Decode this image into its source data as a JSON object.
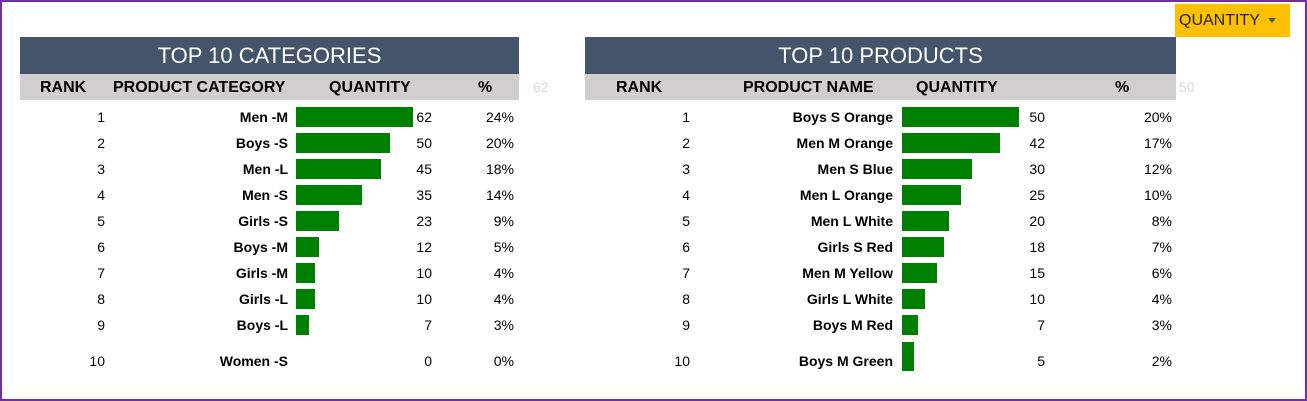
{
  "dropdown": {
    "label": "QUANTITY",
    "icon": "caret-down-icon"
  },
  "colors": {
    "header_bg": "#44546a",
    "subheader_bg": "#d0cece",
    "bar": "#008000",
    "accent": "#ffc000",
    "border": "#7030a0"
  },
  "categories": {
    "title": "TOP 10 CATEGORIES",
    "headers": {
      "rank": "RANK",
      "name": "PRODUCT CATEGORY",
      "quantity": "QUANTITY",
      "pct": "%"
    },
    "max_label": "62",
    "max": 62,
    "rows": [
      {
        "rank": "1",
        "name": "Men -M",
        "quantity": 62,
        "pct": "24%"
      },
      {
        "rank": "2",
        "name": "Boys -S",
        "quantity": 50,
        "pct": "20%"
      },
      {
        "rank": "3",
        "name": "Men -L",
        "quantity": 45,
        "pct": "18%"
      },
      {
        "rank": "4",
        "name": "Men -S",
        "quantity": 35,
        "pct": "14%"
      },
      {
        "rank": "5",
        "name": "Girls -S",
        "quantity": 23,
        "pct": "9%"
      },
      {
        "rank": "6",
        "name": "Boys -M",
        "quantity": 12,
        "pct": "5%"
      },
      {
        "rank": "7",
        "name": "Girls -M",
        "quantity": 10,
        "pct": "4%"
      },
      {
        "rank": "8",
        "name": "Girls -L",
        "quantity": 10,
        "pct": "4%"
      },
      {
        "rank": "9",
        "name": "Boys -L",
        "quantity": 7,
        "pct": "3%"
      },
      {
        "rank": "10",
        "name": "Women -S",
        "quantity": 0,
        "pct": "0%"
      }
    ]
  },
  "products": {
    "title": "TOP 10 PRODUCTS",
    "headers": {
      "rank": "RANK",
      "name": "PRODUCT NAME",
      "quantity": "QUANTITY",
      "pct": "%"
    },
    "max_label": "50",
    "max": 50,
    "rows": [
      {
        "rank": "1",
        "name": "Boys S Orange",
        "quantity": 50,
        "pct": "20%"
      },
      {
        "rank": "2",
        "name": "Men M Orange",
        "quantity": 42,
        "pct": "17%"
      },
      {
        "rank": "3",
        "name": "Men S Blue",
        "quantity": 30,
        "pct": "12%"
      },
      {
        "rank": "4",
        "name": "Men L Orange",
        "quantity": 25,
        "pct": "10%"
      },
      {
        "rank": "5",
        "name": "Men L White",
        "quantity": 20,
        "pct": "8%"
      },
      {
        "rank": "6",
        "name": "Girls S Red",
        "quantity": 18,
        "pct": "7%"
      },
      {
        "rank": "7",
        "name": "Men M Yellow",
        "quantity": 15,
        "pct": "6%"
      },
      {
        "rank": "8",
        "name": "Girls L White",
        "quantity": 10,
        "pct": "4%"
      },
      {
        "rank": "9",
        "name": "Boys M Red",
        "quantity": 7,
        "pct": "3%"
      },
      {
        "rank": "10",
        "name": "Boys M Green",
        "quantity": 5,
        "pct": "2%"
      }
    ]
  }
}
